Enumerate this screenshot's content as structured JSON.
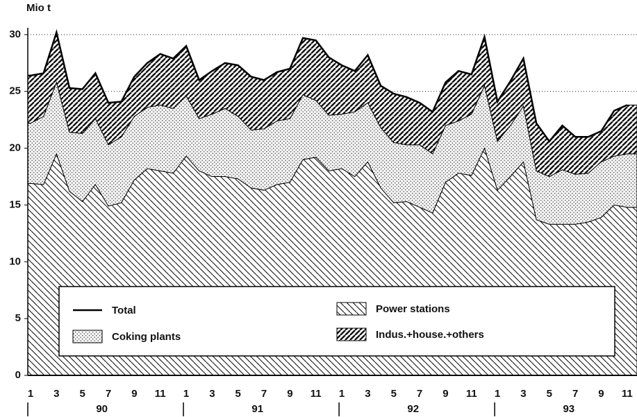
{
  "chart_data": {
    "type": "stacked-area",
    "y_label": "Mio t",
    "categories": [
      "1",
      null,
      "3",
      null,
      "5",
      null,
      "7",
      null,
      "9",
      null,
      "11",
      null,
      "1",
      null,
      "3",
      null,
      "5",
      null,
      "7",
      null,
      "9",
      null,
      "11",
      null,
      "1",
      null,
      "3",
      null,
      "5",
      null,
      "7",
      null,
      "9",
      null,
      "11",
      null,
      "1",
      null,
      "3",
      null,
      "5",
      null,
      "7",
      null,
      "9",
      null,
      "11"
    ],
    "years": [
      "90",
      "91",
      "92",
      "93"
    ],
    "ylim": [
      0,
      31
    ],
    "yticks": [
      0,
      5,
      10,
      15,
      20,
      25,
      30
    ],
    "grid": true,
    "series": [
      {
        "name": "Total",
        "kind": "line",
        "color": "#000000",
        "values": [
          26.4,
          26.6,
          30.2,
          25.3,
          25.2,
          26.6,
          24.0,
          24.1,
          26.3,
          27.5,
          28.3,
          27.9,
          29.0,
          26.0,
          26.8,
          27.5,
          27.3,
          26.3,
          26.0,
          26.7,
          27.0,
          29.7,
          29.5,
          28.0,
          27.3,
          26.8,
          28.2,
          25.5,
          24.8,
          24.5,
          24.0,
          23.2,
          25.8,
          26.8,
          26.5,
          29.8,
          24.1,
          25.9,
          27.9,
          22.2,
          20.6,
          22.0,
          21.0,
          21.0,
          21.5,
          23.3,
          23.8
        ]
      },
      {
        "name": "Power stations",
        "kind": "area",
        "pattern": "diagonal",
        "color": "#000000",
        "values": [
          16.9,
          16.8,
          19.5,
          16.2,
          15.3,
          16.8,
          14.9,
          15.2,
          17.2,
          18.2,
          18.0,
          17.8,
          19.3,
          18.0,
          17.5,
          17.5,
          17.3,
          16.5,
          16.3,
          16.8,
          17.0,
          19.0,
          19.2,
          18.0,
          18.2,
          17.5,
          18.8,
          16.5,
          15.2,
          15.3,
          14.8,
          14.3,
          17.0,
          17.8,
          17.6,
          20.0,
          16.3,
          17.5,
          18.8,
          13.7,
          13.3,
          13.3,
          13.3,
          13.5,
          13.9,
          15.0,
          14.8
        ]
      },
      {
        "name": "Coking plants",
        "kind": "area",
        "pattern": "dots",
        "color": "#000000",
        "values": [
          5.3,
          6.0,
          6.3,
          5.2,
          6.0,
          5.8,
          5.4,
          5.8,
          5.6,
          5.4,
          5.8,
          5.7,
          5.3,
          4.6,
          5.5,
          6.0,
          5.5,
          5.1,
          5.4,
          5.6,
          5.6,
          5.7,
          5.0,
          4.9,
          4.8,
          5.7,
          5.2,
          5.3,
          5.3,
          5.0,
          5.5,
          5.2,
          5.0,
          4.6,
          5.4,
          5.5,
          4.3,
          4.5,
          4.9,
          4.3,
          4.2,
          4.8,
          4.4,
          4.3,
          4.9,
          4.3,
          4.7
        ]
      },
      {
        "name": "Indus.+house.+others",
        "kind": "area",
        "pattern": "dense-diagonal",
        "color": "#000000",
        "values": [
          4.2,
          3.8,
          4.4,
          3.9,
          3.9,
          4.0,
          3.7,
          3.1,
          3.5,
          3.9,
          4.5,
          4.4,
          4.4,
          3.4,
          3.8,
          4.0,
          4.5,
          4.7,
          4.3,
          4.3,
          4.4,
          5.0,
          5.3,
          5.1,
          4.3,
          3.6,
          4.2,
          3.7,
          4.3,
          4.2,
          3.7,
          3.7,
          3.8,
          4.4,
          3.5,
          4.3,
          3.5,
          3.9,
          4.2,
          4.2,
          3.1,
          3.9,
          3.3,
          3.2,
          2.7,
          4.0,
          4.3
        ]
      }
    ]
  }
}
